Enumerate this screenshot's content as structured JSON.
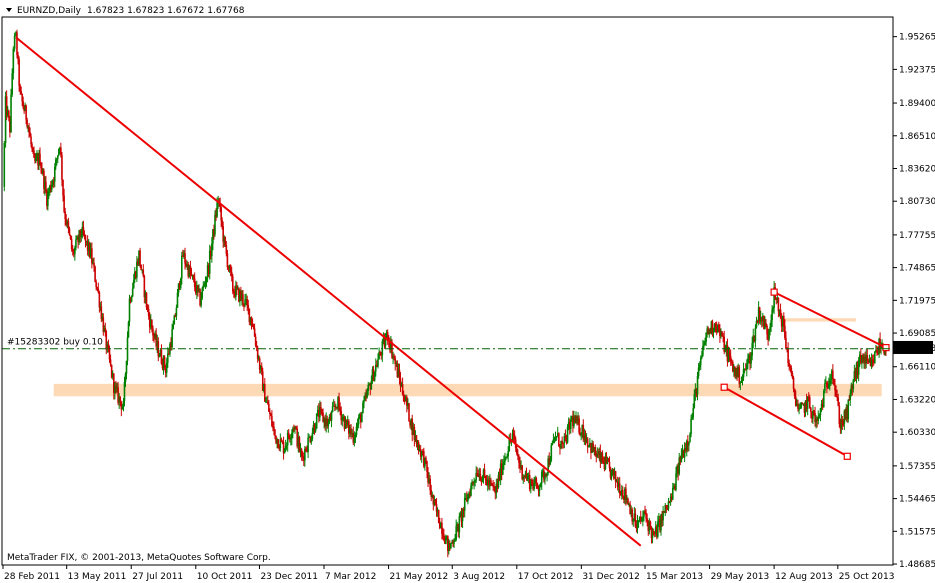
{
  "header": {
    "symbol_tf": "EURNZD,Daily",
    "ohlc": "1.67823 1.67823 1.67672 1.67768"
  },
  "order_label": "#15283302 buy 0.10",
  "copyright": "MetaTrader FIX, © 2001-2013, MetaQuotes Software Corp.",
  "colors": {
    "background": "#ffffff",
    "bull_candle": "#008000",
    "bear_candle": "#cc0000",
    "trendline": "#ee0000",
    "zone": "#fdd9b5",
    "order_line": "#006400",
    "price_tag_bg": "#000000",
    "price_tag_text": "#ffffff"
  },
  "chart_data": {
    "type": "candlestick",
    "symbol": "EURNZD",
    "timeframe": "Daily",
    "last_price": "1.67768",
    "ylim": [
      1.486,
      1.97
    ],
    "price_ticks": [
      "1.95265",
      "1.92375",
      "1.89400",
      "1.86510",
      "1.83620",
      "1.80730",
      "1.77755",
      "1.74865",
      "1.71975",
      "1.69085",
      "1.66110",
      "1.63220",
      "1.60330",
      "1.57355",
      "1.54465",
      "1.51575",
      "1.48685"
    ],
    "date_ticks": [
      "28 Feb 2011",
      "13 May 2011",
      "27 Jul 2011",
      "10 Oct 2011",
      "23 Dec 2011",
      "7 Mar 2012",
      "21 May 2012",
      "3 Aug 2012",
      "17 Oct 2012",
      "31 Dec 2012",
      "15 Mar 2013",
      "29 May 2013",
      "12 Aug 2013",
      "25 Oct 2013"
    ],
    "close_path": [
      {
        "d": "2011-02-28",
        "p": 1.82
      },
      {
        "d": "2011-03-03",
        "p": 1.893
      },
      {
        "d": "2011-03-08",
        "p": 1.872
      },
      {
        "d": "2011-03-12",
        "p": 1.945
      },
      {
        "d": "2011-03-15",
        "p": 1.952
      },
      {
        "d": "2011-03-20",
        "p": 1.9
      },
      {
        "d": "2011-03-28",
        "p": 1.88
      },
      {
        "d": "2011-04-05",
        "p": 1.84
      },
      {
        "d": "2011-04-12",
        "p": 1.845
      },
      {
        "d": "2011-04-20",
        "p": 1.81
      },
      {
        "d": "2011-04-28",
        "p": 1.83
      },
      {
        "d": "2011-05-05",
        "p": 1.86
      },
      {
        "d": "2011-05-10",
        "p": 1.8
      },
      {
        "d": "2011-05-20",
        "p": 1.76
      },
      {
        "d": "2011-05-30",
        "p": 1.78
      },
      {
        "d": "2011-06-10",
        "p": 1.76
      },
      {
        "d": "2011-06-20",
        "p": 1.72
      },
      {
        "d": "2011-06-28",
        "p": 1.68
      },
      {
        "d": "2011-07-08",
        "p": 1.64
      },
      {
        "d": "2011-07-18",
        "p": 1.625
      },
      {
        "d": "2011-07-25",
        "p": 1.72
      },
      {
        "d": "2011-08-05",
        "p": 1.76
      },
      {
        "d": "2011-08-15",
        "p": 1.71
      },
      {
        "d": "2011-08-25",
        "p": 1.68
      },
      {
        "d": "2011-09-05",
        "p": 1.66
      },
      {
        "d": "2011-09-15",
        "p": 1.7
      },
      {
        "d": "2011-09-25",
        "p": 1.76
      },
      {
        "d": "2011-10-05",
        "p": 1.74
      },
      {
        "d": "2011-10-15",
        "p": 1.72
      },
      {
        "d": "2011-10-25",
        "p": 1.75
      },
      {
        "d": "2011-11-05",
        "p": 1.81
      },
      {
        "d": "2011-11-12",
        "p": 1.77
      },
      {
        "d": "2011-11-22",
        "p": 1.73
      },
      {
        "d": "2011-12-05",
        "p": 1.72
      },
      {
        "d": "2011-12-15",
        "p": 1.7
      },
      {
        "d": "2011-12-28",
        "p": 1.64
      },
      {
        "d": "2012-01-10",
        "p": 1.6
      },
      {
        "d": "2012-01-20",
        "p": 1.59
      },
      {
        "d": "2012-02-01",
        "p": 1.61
      },
      {
        "d": "2012-02-10",
        "p": 1.58
      },
      {
        "d": "2012-02-20",
        "p": 1.6
      },
      {
        "d": "2012-03-01",
        "p": 1.62
      },
      {
        "d": "2012-03-12",
        "p": 1.61
      },
      {
        "d": "2012-03-22",
        "p": 1.63
      },
      {
        "d": "2012-04-01",
        "p": 1.61
      },
      {
        "d": "2012-04-10",
        "p": 1.6
      },
      {
        "d": "2012-04-20",
        "p": 1.62
      },
      {
        "d": "2012-05-01",
        "p": 1.65
      },
      {
        "d": "2012-05-10",
        "p": 1.67
      },
      {
        "d": "2012-05-20",
        "p": 1.69
      },
      {
        "d": "2012-05-30",
        "p": 1.66
      },
      {
        "d": "2012-06-10",
        "p": 1.63
      },
      {
        "d": "2012-06-20",
        "p": 1.6
      },
      {
        "d": "2012-07-01",
        "p": 1.58
      },
      {
        "d": "2012-07-12",
        "p": 1.54
      },
      {
        "d": "2012-07-22",
        "p": 1.52
      },
      {
        "d": "2012-07-30",
        "p": 1.5
      },
      {
        "d": "2012-08-10",
        "p": 1.52
      },
      {
        "d": "2012-08-20",
        "p": 1.545
      },
      {
        "d": "2012-09-01",
        "p": 1.57
      },
      {
        "d": "2012-09-12",
        "p": 1.56
      },
      {
        "d": "2012-09-22",
        "p": 1.55
      },
      {
        "d": "2012-10-02",
        "p": 1.58
      },
      {
        "d": "2012-10-12",
        "p": 1.6
      },
      {
        "d": "2012-10-22",
        "p": 1.57
      },
      {
        "d": "2012-11-01",
        "p": 1.56
      },
      {
        "d": "2012-11-10",
        "p": 1.555
      },
      {
        "d": "2012-11-20",
        "p": 1.57
      },
      {
        "d": "2012-12-01",
        "p": 1.6
      },
      {
        "d": "2012-12-10",
        "p": 1.59
      },
      {
        "d": "2012-12-20",
        "p": 1.615
      },
      {
        "d": "2013-01-01",
        "p": 1.605
      },
      {
        "d": "2013-01-15",
        "p": 1.585
      },
      {
        "d": "2013-01-28",
        "p": 1.575
      },
      {
        "d": "2013-02-10",
        "p": 1.56
      },
      {
        "d": "2013-02-22",
        "p": 1.545
      },
      {
        "d": "2013-03-05",
        "p": 1.52
      },
      {
        "d": "2013-03-15",
        "p": 1.53
      },
      {
        "d": "2013-03-25",
        "p": 1.51
      },
      {
        "d": "2013-04-05",
        "p": 1.53
      },
      {
        "d": "2013-04-15",
        "p": 1.545
      },
      {
        "d": "2013-04-25",
        "p": 1.58
      },
      {
        "d": "2013-05-05",
        "p": 1.6
      },
      {
        "d": "2013-05-15",
        "p": 1.65
      },
      {
        "d": "2013-05-25",
        "p": 1.69
      },
      {
        "d": "2013-06-05",
        "p": 1.7
      },
      {
        "d": "2013-06-15",
        "p": 1.68
      },
      {
        "d": "2013-06-25",
        "p": 1.66
      },
      {
        "d": "2013-07-05",
        "p": 1.65
      },
      {
        "d": "2013-07-15",
        "p": 1.67
      },
      {
        "d": "2013-07-25",
        "p": 1.71
      },
      {
        "d": "2013-08-05",
        "p": 1.69
      },
      {
        "d": "2013-08-12",
        "p": 1.725
      },
      {
        "d": "2013-08-22",
        "p": 1.7
      },
      {
        "d": "2013-09-01",
        "p": 1.65
      },
      {
        "d": "2013-09-10",
        "p": 1.62
      },
      {
        "d": "2013-09-20",
        "p": 1.63
      },
      {
        "d": "2013-10-01",
        "p": 1.61
      },
      {
        "d": "2013-10-10",
        "p": 1.64
      },
      {
        "d": "2013-10-18",
        "p": 1.66
      },
      {
        "d": "2013-10-28",
        "p": 1.61
      },
      {
        "d": "2013-11-05",
        "p": 1.62
      },
      {
        "d": "2013-11-12",
        "p": 1.65
      },
      {
        "d": "2013-11-22",
        "p": 1.67
      },
      {
        "d": "2013-12-02",
        "p": 1.66
      },
      {
        "d": "2013-12-12",
        "p": 1.68
      },
      {
        "d": "2013-12-20",
        "p": 1.678
      }
    ],
    "trendlines": [
      {
        "from": {
          "d": "2011-03-15",
          "p": 1.952
        },
        "to": {
          "d": "2013-03-10",
          "p": 1.503
        }
      },
      {
        "from": {
          "d": "2013-08-12",
          "p": 1.727
        },
        "to": {
          "d": "2013-12-20",
          "p": 1.678
        }
      },
      {
        "from": {
          "d": "2013-06-15",
          "p": 1.643
        },
        "to": {
          "d": "2013-11-05",
          "p": 1.582
        }
      }
    ],
    "zones": [
      {
        "from": "2011-04-28",
        "to": "2013-12-15",
        "low": 1.635,
        "high": 1.646
      },
      {
        "from": "2013-08-18",
        "to": "2013-11-15",
        "low": 1.701,
        "high": 1.704
      }
    ],
    "order_line_price": 1.677,
    "grid": false,
    "legend": "none"
  }
}
